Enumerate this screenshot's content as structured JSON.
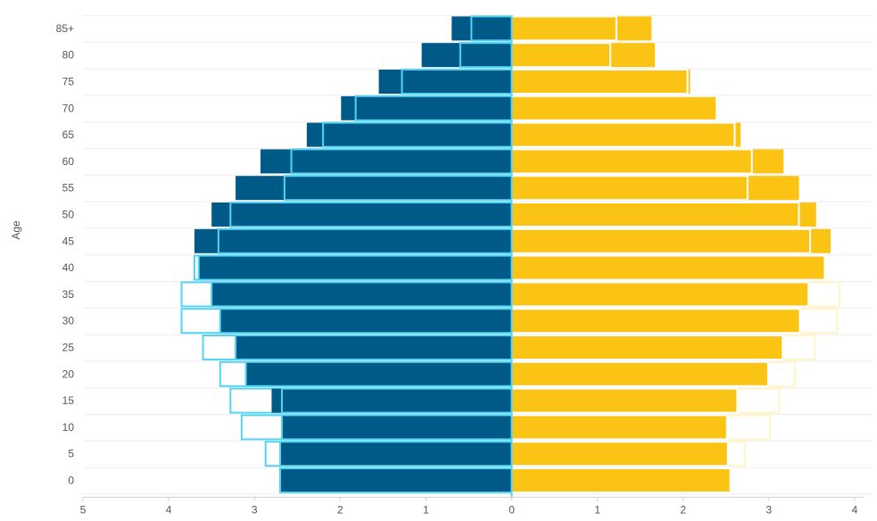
{
  "chart_data": {
    "type": "bar",
    "orientation": "horizontal-population-pyramid",
    "ylabel": "Age",
    "age_groups": [
      "0",
      "5",
      "10",
      "15",
      "20",
      "25",
      "30",
      "35",
      "40",
      "45",
      "50",
      "55",
      "60",
      "65",
      "70",
      "75",
      "80",
      "85+"
    ],
    "x_ticks": [
      "5",
      "4",
      "3",
      "2",
      "1",
      "0",
      "1",
      "2",
      "3",
      "4"
    ],
    "xlim": [
      -5,
      4
    ],
    "grid": "horizontal",
    "colors": {
      "left_fill": "#005a87",
      "left_overlay": "#53d4f4",
      "right_fill": "#fbc313",
      "right_overlay": "#fff5c6"
    },
    "series": [
      {
        "side": "left",
        "style": "filled",
        "values": [
          2.68,
          2.68,
          2.68,
          2.8,
          3.1,
          3.22,
          3.4,
          3.5,
          3.65,
          3.7,
          3.5,
          3.22,
          2.93,
          2.39,
          1.99,
          1.55,
          1.05,
          0.7
        ]
      },
      {
        "side": "left",
        "style": "outline",
        "values": [
          2.7,
          2.7,
          2.68,
          2.68,
          3.1,
          3.22,
          3.4,
          3.5,
          3.65,
          3.42,
          3.28,
          2.65,
          2.57,
          2.2,
          1.82,
          1.28,
          0.6,
          0.47
        ]
      },
      {
        "side": "left",
        "style": "outline-light",
        "values": [
          2.7,
          2.87,
          3.15,
          3.28,
          3.4,
          3.6,
          3.85,
          3.85,
          3.7,
          3.42,
          3.28,
          2.65,
          2.57,
          2.2,
          1.82,
          1.28,
          0.6,
          0.47
        ]
      },
      {
        "side": "right",
        "style": "filled",
        "values": [
          2.55,
          2.52,
          2.51,
          2.63,
          2.99,
          3.16,
          3.36,
          3.46,
          3.65,
          3.72,
          3.55,
          3.35,
          3.17,
          2.67,
          2.39,
          2.08,
          1.67,
          1.63
        ]
      },
      {
        "side": "right",
        "style": "outline",
        "values": [
          2.55,
          2.52,
          2.51,
          2.63,
          2.99,
          3.16,
          3.36,
          3.46,
          3.65,
          3.48,
          3.35,
          2.75,
          2.8,
          2.6,
          2.39,
          2.05,
          1.15,
          1.22
        ]
      },
      {
        "side": "right",
        "style": "outline-light",
        "values": [
          2.55,
          2.72,
          3.01,
          3.12,
          3.3,
          3.53,
          3.79,
          3.82,
          3.65,
          3.48,
          3.35,
          2.75,
          2.8,
          2.6,
          2.39,
          2.05,
          1.15,
          1.22
        ]
      }
    ]
  }
}
